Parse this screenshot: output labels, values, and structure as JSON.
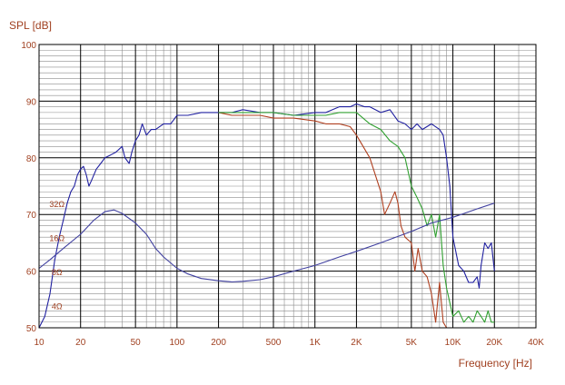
{
  "chart_data": {
    "type": "line",
    "ylabel": "SPL [dB]",
    "xlabel": "Frequency [Hz]",
    "x_scale": "log",
    "xlim": [
      10,
      40000
    ],
    "ylim": [
      50,
      100
    ],
    "grid": true,
    "y_ticks": [
      "50",
      "60",
      "70",
      "80",
      "90",
      "100"
    ],
    "x_ticks": [
      {
        "v": 10,
        "label": "10"
      },
      {
        "v": 20,
        "label": "20"
      },
      {
        "v": 50,
        "label": "50"
      },
      {
        "v": 100,
        "label": "100"
      },
      {
        "v": 200,
        "label": "200"
      },
      {
        "v": 500,
        "label": "500"
      },
      {
        "v": 1000,
        "label": "1K"
      },
      {
        "v": 2000,
        "label": "2K"
      },
      {
        "v": 5000,
        "label": "5K"
      },
      {
        "v": 10000,
        "label": "10K"
      },
      {
        "v": 20000,
        "label": "20K"
      },
      {
        "v": 40000,
        "label": "40K"
      }
    ],
    "impedance_labels": [
      {
        "label": "32Ω",
        "y": 71.8
      },
      {
        "label": "16Ω",
        "y": 65.8
      },
      {
        "label": "8Ω",
        "y": 59.8
      },
      {
        "label": "4Ω",
        "y": 53.8
      }
    ],
    "series": [
      {
        "color": "#2020a0",
        "points": [
          [
            10,
            50
          ],
          [
            11,
            52
          ],
          [
            12,
            56
          ],
          [
            13,
            62
          ],
          [
            14,
            66
          ],
          [
            15,
            69
          ],
          [
            16,
            72
          ],
          [
            17,
            74
          ],
          [
            18,
            75
          ],
          [
            19,
            77
          ],
          [
            20,
            78
          ],
          [
            21,
            78.5
          ],
          [
            22,
            77
          ],
          [
            23,
            75
          ],
          [
            24,
            76
          ],
          [
            26,
            78
          ],
          [
            28,
            79
          ],
          [
            30,
            80
          ],
          [
            33,
            80.5
          ],
          [
            36,
            81
          ],
          [
            40,
            82
          ],
          [
            42,
            80
          ],
          [
            45,
            79
          ],
          [
            47,
            81
          ],
          [
            50,
            83
          ],
          [
            53,
            84
          ],
          [
            56,
            86
          ],
          [
            60,
            84
          ],
          [
            65,
            85
          ],
          [
            70,
            85
          ],
          [
            80,
            86
          ],
          [
            90,
            86
          ],
          [
            100,
            87.5
          ],
          [
            120,
            87.5
          ],
          [
            150,
            88
          ],
          [
            200,
            88
          ],
          [
            250,
            88
          ],
          [
            300,
            88.5
          ],
          [
            400,
            88
          ],
          [
            500,
            88
          ],
          [
            700,
            87.5
          ],
          [
            1000,
            88
          ],
          [
            1200,
            88
          ],
          [
            1500,
            89
          ],
          [
            1800,
            89
          ],
          [
            2000,
            89.5
          ],
          [
            2300,
            89
          ],
          [
            2500,
            89
          ],
          [
            3000,
            88
          ],
          [
            3500,
            88.5
          ],
          [
            4000,
            86.5
          ],
          [
            4500,
            86
          ],
          [
            5000,
            85
          ],
          [
            5500,
            86
          ],
          [
            6000,
            85
          ],
          [
            7000,
            86
          ],
          [
            8000,
            85
          ],
          [
            8500,
            84
          ],
          [
            9000,
            80
          ],
          [
            9500,
            75
          ],
          [
            10000,
            66
          ],
          [
            11000,
            61
          ],
          [
            12000,
            60
          ],
          [
            13000,
            58
          ],
          [
            14000,
            58
          ],
          [
            15000,
            59
          ],
          [
            15500,
            57
          ],
          [
            16000,
            61
          ],
          [
            17000,
            65
          ],
          [
            18000,
            64
          ],
          [
            19000,
            65
          ],
          [
            20000,
            60
          ]
        ]
      },
      {
        "color": "#b04020",
        "points": [
          [
            200,
            88
          ],
          [
            250,
            87.5
          ],
          [
            300,
            87.5
          ],
          [
            400,
            87.5
          ],
          [
            500,
            87
          ],
          [
            700,
            87
          ],
          [
            1000,
            86.5
          ],
          [
            1200,
            86
          ],
          [
            1500,
            86
          ],
          [
            1800,
            85.5
          ],
          [
            2000,
            84
          ],
          [
            2500,
            80
          ],
          [
            3000,
            74
          ],
          [
            3200,
            70
          ],
          [
            3500,
            72
          ],
          [
            3800,
            74
          ],
          [
            4000,
            72
          ],
          [
            4200,
            68
          ],
          [
            4500,
            66
          ],
          [
            5000,
            65
          ],
          [
            5300,
            60
          ],
          [
            5600,
            64
          ],
          [
            6000,
            60
          ],
          [
            6500,
            59
          ],
          [
            7000,
            56
          ],
          [
            7500,
            51
          ],
          [
            8000,
            58
          ],
          [
            8500,
            51
          ],
          [
            9000,
            50
          ]
        ]
      },
      {
        "color": "#30a030",
        "points": [
          [
            200,
            88
          ],
          [
            300,
            88
          ],
          [
            500,
            88
          ],
          [
            700,
            87.5
          ],
          [
            1000,
            87.5
          ],
          [
            1200,
            87.5
          ],
          [
            1500,
            88
          ],
          [
            2000,
            88
          ],
          [
            2500,
            86
          ],
          [
            3000,
            85
          ],
          [
            3500,
            83
          ],
          [
            4000,
            82
          ],
          [
            4500,
            80
          ],
          [
            5000,
            75
          ],
          [
            5500,
            73
          ],
          [
            6000,
            71
          ],
          [
            6500,
            68
          ],
          [
            7000,
            70
          ],
          [
            7500,
            66
          ],
          [
            8000,
            70
          ],
          [
            8500,
            61
          ],
          [
            9000,
            57
          ],
          [
            10000,
            52
          ],
          [
            11000,
            53
          ],
          [
            12000,
            51
          ],
          [
            13000,
            52
          ],
          [
            14000,
            51
          ],
          [
            15000,
            53
          ],
          [
            16000,
            52
          ],
          [
            17000,
            51
          ],
          [
            18000,
            53
          ],
          [
            19000,
            51
          ],
          [
            20000,
            51
          ]
        ]
      },
      {
        "color": "#4040a0",
        "points": [
          [
            10,
            60.5
          ],
          [
            12,
            62
          ],
          [
            15,
            64
          ],
          [
            20,
            66.5
          ],
          [
            25,
            69
          ],
          [
            30,
            70.5
          ],
          [
            35,
            70.8
          ],
          [
            40,
            70.2
          ],
          [
            50,
            68.5
          ],
          [
            60,
            66.5
          ],
          [
            70,
            64
          ],
          [
            80,
            62.5
          ],
          [
            100,
            60.5
          ],
          [
            120,
            59.5
          ],
          [
            150,
            58.7
          ],
          [
            200,
            58.3
          ],
          [
            250,
            58.1
          ],
          [
            300,
            58.2
          ],
          [
            400,
            58.5
          ],
          [
            500,
            59
          ],
          [
            700,
            60
          ],
          [
            1000,
            61
          ],
          [
            1500,
            62.5
          ],
          [
            2000,
            63.5
          ],
          [
            3000,
            65
          ],
          [
            5000,
            67
          ],
          [
            7000,
            68.5
          ],
          [
            10000,
            69.5
          ],
          [
            15000,
            71
          ],
          [
            20000,
            72
          ]
        ]
      }
    ]
  }
}
